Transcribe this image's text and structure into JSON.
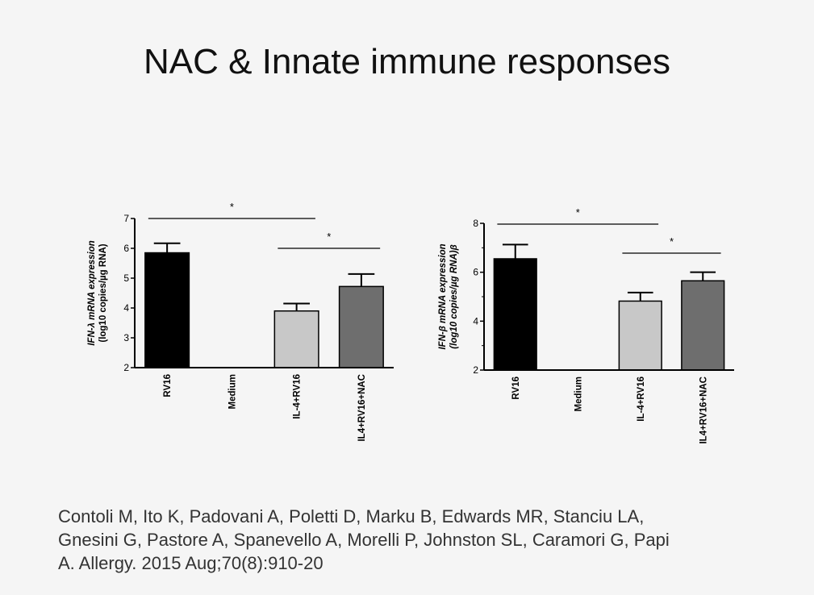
{
  "slide": {
    "title": "NAC & Innate immune responses",
    "citation_lines": [
      "Contoli M, Ito K, Padovani A, Poletti D, Marku B, Edwards MR, Stanciu LA,",
      "Gnesini G, Pastore A, Spanevello A, Morelli P, Johnston SL, Caramori G, Papi",
      "A. Allergy. 2015 Aug;70(8):910-20"
    ]
  },
  "chart_data": [
    {
      "type": "bar",
      "ylabel_line1": "IFN-λ mRNA expression",
      "ylabel_line2": "(log10 copies/µg RNA)",
      "categories": [
        "RV16",
        "Medium",
        "IL-4+RV16",
        "IL4+RV16+NAC"
      ],
      "values": [
        5.85,
        2.0,
        3.9,
        4.72
      ],
      "errors": [
        0.32,
        0,
        0.25,
        0.42
      ],
      "colors": [
        "#000000",
        "#ffffff",
        "#c8c8c8",
        "#6e6e6e"
      ],
      "ylim": [
        2,
        7
      ],
      "yticks": [
        2,
        3,
        4,
        5,
        6,
        7
      ],
      "significance": [
        {
          "from": 0,
          "to": 2,
          "label": "*"
        },
        {
          "from": 2,
          "to": 3,
          "label": "*"
        }
      ]
    },
    {
      "type": "bar",
      "ylabel_line1": "IFN-β mRNA expression",
      "ylabel_line2": "(log10 copies/µg RNA)β",
      "categories": [
        "RV16",
        "Medium",
        "IL-4+RV16",
        "IL4+RV16+NAC"
      ],
      "values": [
        6.55,
        2.0,
        4.82,
        5.65
      ],
      "errors": [
        0.58,
        0,
        0.35,
        0.35
      ],
      "colors": [
        "#000000",
        "#ffffff",
        "#c8c8c8",
        "#6e6e6e"
      ],
      "ylim": [
        2,
        8
      ],
      "yticks": [
        2,
        4,
        6,
        8
      ],
      "significance": [
        {
          "from": 0,
          "to": 2,
          "label": "*"
        },
        {
          "from": 2,
          "to": 3,
          "label": "*"
        }
      ]
    }
  ]
}
